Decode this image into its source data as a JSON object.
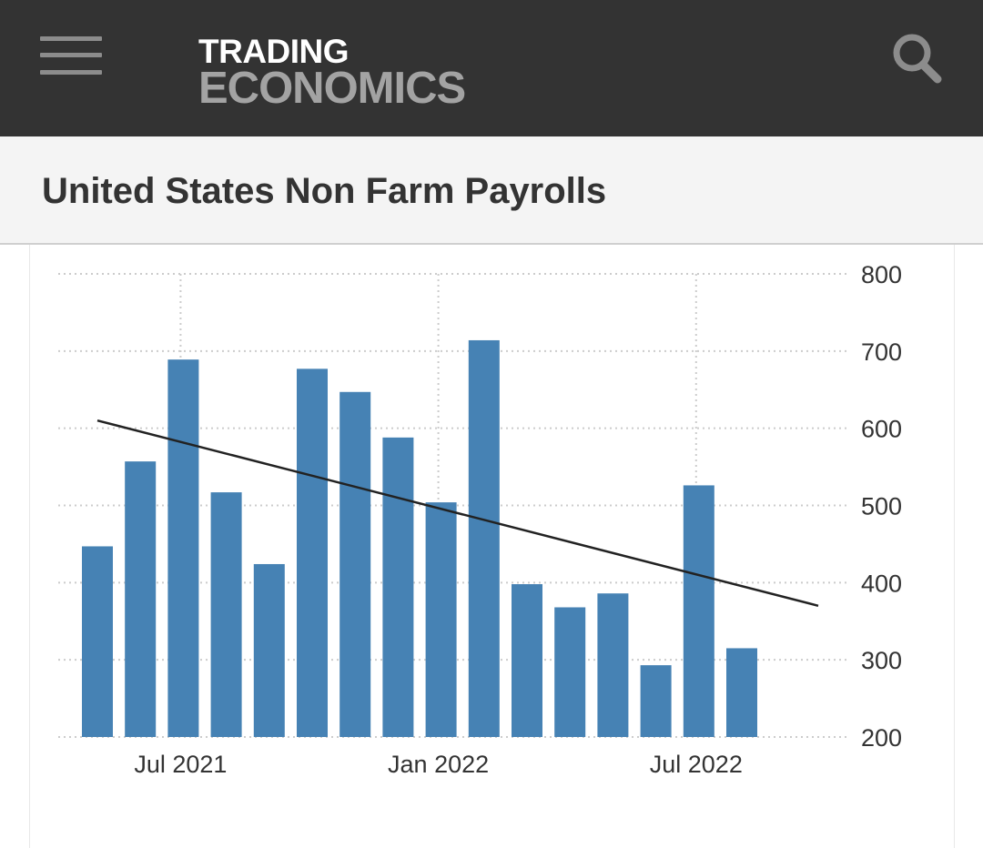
{
  "header": {
    "logo_top": "TRADING",
    "logo_bottom": "ECONOMICS",
    "menu_icon": "hamburger-menu-icon",
    "search_icon": "search-icon"
  },
  "page": {
    "title": "United States Non Farm Payrolls"
  },
  "colors": {
    "header_bg": "#333333",
    "bar": "#4682b4",
    "trend": "#222222",
    "grid": "#cccccc"
  },
  "chart_data": {
    "type": "bar",
    "categories": [
      "2021-05",
      "2021-06",
      "2021-07",
      "2021-08",
      "2021-09",
      "2021-10",
      "2021-11",
      "2021-12",
      "2022-01",
      "2022-02",
      "2022-03",
      "2022-04",
      "2022-05",
      "2022-06",
      "2022-07",
      "2022-08"
    ],
    "values": [
      447,
      557,
      689,
      517,
      424,
      677,
      647,
      588,
      504,
      714,
      398,
      368,
      386,
      293,
      526,
      315
    ],
    "trendline": {
      "start": 610,
      "end": 370
    },
    "ylim": [
      200,
      800
    ],
    "yticks": [
      200,
      300,
      400,
      500,
      600,
      700,
      800
    ],
    "xtick_labels": [
      {
        "label": "Jul 2021",
        "index": 2
      },
      {
        "label": "Jan 2022",
        "index": 8
      },
      {
        "label": "Jul 2022",
        "index": 14
      }
    ],
    "y_axis_side": "right",
    "grid": true,
    "legend": "none"
  }
}
